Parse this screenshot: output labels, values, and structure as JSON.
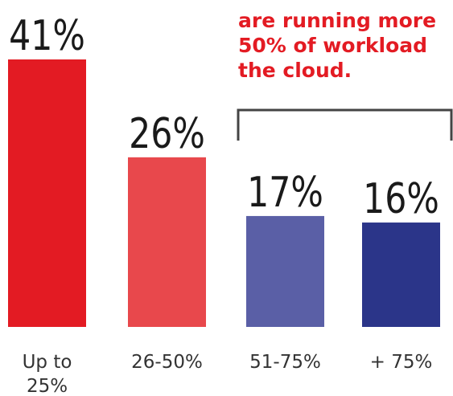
{
  "chart_data": {
    "type": "bar",
    "categories": [
      "Up to 25%",
      "26-50%",
      "51-75%",
      "+ 75%"
    ],
    "category_lines": [
      [
        "Up to",
        "25%"
      ],
      [
        "26-50%"
      ],
      [
        "51-75%"
      ],
      [
        "+ 75%"
      ]
    ],
    "values": [
      41,
      26,
      17,
      16
    ],
    "value_labels": [
      "41%",
      "26%",
      "17%",
      "16%"
    ],
    "colors": [
      "#e31b23",
      "#e8484c",
      "#5a5fa6",
      "#2b3589"
    ],
    "ylim": [
      0,
      41
    ],
    "grid": false,
    "legend": "none",
    "title": "",
    "xlabel": "",
    "ylabel": "",
    "annotation": {
      "lines": [
        "are running more",
        "50% of workload",
        "the cloud."
      ],
      "color": "#e31b23",
      "bracket_color": "#444444"
    }
  }
}
